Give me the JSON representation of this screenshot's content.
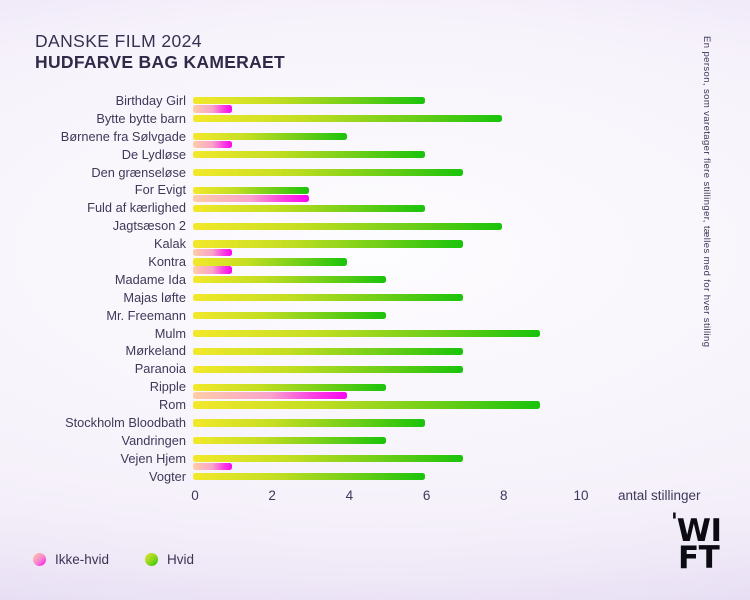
{
  "header": {
    "title": "DANSKE FILM 2024",
    "subtitle": "HUDFARVE BAG KAMERAET"
  },
  "side_note": "En person, som varetager flere stillinger, tælles med for hver stilling",
  "legend": [
    {
      "label": "Ikke-hvid",
      "color_start": "#ffcda6",
      "color_end": "#fb05f1",
      "dot_class": "dot-ikke-hvid"
    },
    {
      "label": "Hvid",
      "color_start": "#e8e42a",
      "color_end": "#1ac30b",
      "dot_class": "dot-hvid"
    }
  ],
  "logo": {
    "tick": "'",
    "line1": "WI",
    "line2": "FT"
  },
  "colors": {
    "hvid_gradient": [
      "#f3e82b",
      "#1ac30b"
    ],
    "ikke_hvid_gradient": [
      "#ffcda6",
      "#fb05f1"
    ],
    "text": "#363150",
    "background_edge": "#e4daf5",
    "background_center": "#fdfcfe"
  },
  "chart_data": {
    "type": "bar",
    "orientation": "horizontal",
    "title": "DANSKE FILM 2024",
    "subtitle": "HUDFARVE BAG KAMERAET",
    "xlabel": "antal stillinger",
    "ylabel": "",
    "xlim": [
      0,
      10
    ],
    "x_ticks": [
      0,
      2,
      4,
      6,
      8,
      10
    ],
    "grid": false,
    "legend_position": "bottom-left",
    "annotation": "En person, som varetager flere stillinger, tælles med for hver stilling",
    "categories": [
      "Birthday Girl",
      "Bytte bytte barn",
      "Børnene fra Sølvgade",
      "De Lydløse",
      "Den grænseløse",
      "For Evigt",
      "Fuld af kærlighed",
      "Jagtsæson 2",
      "Kalak",
      "Kontra",
      "Madame Ida",
      "Majas løfte",
      "Mr. Freemann",
      "Mulm",
      "Mørkeland",
      "Paranoia",
      "Ripple",
      "Rom",
      "Stockholm Bloodbath",
      "Vandringen",
      "Vejen Hjem",
      "Vogter"
    ],
    "series": [
      {
        "name": "Hvid",
        "values": [
          6,
          8,
          4,
          6,
          7,
          3,
          6,
          8,
          7,
          4,
          5,
          7,
          5,
          9,
          7,
          7,
          5,
          9,
          6,
          5,
          7,
          6
        ]
      },
      {
        "name": "Ikke-hvid",
        "values": [
          1,
          0,
          1,
          0,
          0,
          3,
          0,
          0,
          1,
          1,
          0,
          0,
          0,
          0,
          0,
          0,
          4,
          0,
          0,
          0,
          1,
          0
        ]
      }
    ]
  }
}
